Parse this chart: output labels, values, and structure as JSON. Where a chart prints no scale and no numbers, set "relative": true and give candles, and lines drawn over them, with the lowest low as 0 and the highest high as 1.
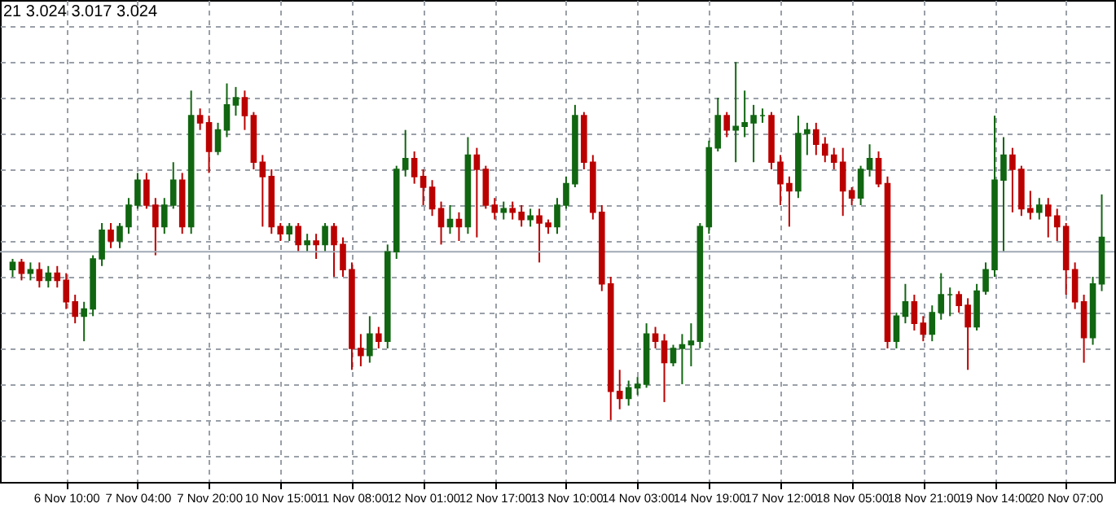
{
  "chart_data": {
    "type": "candlestick",
    "relative": true,
    "grid": true,
    "annotations": [
      "21 3.024 3.017 3.024"
    ],
    "ref_lines": [
      {
        "axis": "y",
        "value": 0.47,
        "color": "#a0aab4"
      }
    ],
    "categories": [
      null,
      null,
      null,
      null,
      null,
      null,
      "6 Nov 10:00",
      null,
      null,
      null,
      null,
      null,
      null,
      null,
      "7 Nov 04:00",
      null,
      null,
      null,
      null,
      null,
      null,
      null,
      "7 Nov 20:00",
      null,
      null,
      null,
      null,
      null,
      null,
      null,
      "10 Nov 15:00",
      null,
      null,
      null,
      null,
      null,
      null,
      null,
      "11 Nov 08:00",
      null,
      null,
      null,
      null,
      null,
      null,
      null,
      "12 Nov 01:00",
      null,
      null,
      null,
      null,
      null,
      null,
      null,
      "12 Nov 17:00",
      null,
      null,
      null,
      null,
      null,
      null,
      null,
      "13 Nov 10:00",
      null,
      null,
      null,
      null,
      null,
      null,
      null,
      "14 Nov 03:00",
      null,
      null,
      null,
      null,
      null,
      null,
      null,
      "14 Nov 19:00",
      null,
      null,
      null,
      null,
      null,
      null,
      null,
      "17 Nov 12:00",
      null,
      null,
      null,
      null,
      null,
      null,
      null,
      "18 Nov 05:00",
      null,
      null,
      null,
      null,
      null,
      null,
      null,
      "18 Nov 21:00",
      null,
      null,
      null,
      null,
      null,
      null,
      null,
      "19 Nov 14:00",
      null,
      null,
      null,
      null,
      null,
      null,
      null,
      "20 Nov 07:00",
      null,
      null,
      null,
      null
    ],
    "ohlc": [
      [
        0.42,
        0.45,
        0.4,
        0.44
      ],
      [
        0.44,
        0.45,
        0.39,
        0.41
      ],
      [
        0.41,
        0.44,
        0.39,
        0.42
      ],
      [
        0.42,
        0.44,
        0.37,
        0.39
      ],
      [
        0.39,
        0.43,
        0.37,
        0.41
      ],
      [
        0.41,
        0.43,
        0.37,
        0.39
      ],
      [
        0.39,
        0.41,
        0.31,
        0.33
      ],
      [
        0.33,
        0.35,
        0.27,
        0.29
      ],
      [
        0.29,
        0.33,
        0.22,
        0.31
      ],
      [
        0.31,
        0.46,
        0.29,
        0.45
      ],
      [
        0.45,
        0.55,
        0.43,
        0.53
      ],
      [
        0.53,
        0.55,
        0.48,
        0.5
      ],
      [
        0.5,
        0.55,
        0.48,
        0.54
      ],
      [
        0.54,
        0.62,
        0.52,
        0.6
      ],
      [
        0.6,
        0.69,
        0.59,
        0.67
      ],
      [
        0.67,
        0.69,
        0.59,
        0.6
      ],
      [
        0.6,
        0.62,
        0.46,
        0.54
      ],
      [
        0.54,
        0.62,
        0.52,
        0.6
      ],
      [
        0.6,
        0.72,
        0.59,
        0.67
      ],
      [
        0.67,
        0.69,
        0.52,
        0.54
      ],
      [
        0.54,
        0.92,
        0.52,
        0.85
      ],
      [
        0.85,
        0.87,
        0.81,
        0.83
      ],
      [
        0.83,
        0.85,
        0.69,
        0.75
      ],
      [
        0.75,
        0.83,
        0.74,
        0.81
      ],
      [
        0.81,
        0.94,
        0.79,
        0.88
      ],
      [
        0.88,
        0.93,
        0.85,
        0.9
      ],
      [
        0.9,
        0.92,
        0.81,
        0.85
      ],
      [
        0.85,
        0.86,
        0.7,
        0.72
      ],
      [
        0.72,
        0.74,
        0.54,
        0.68
      ],
      [
        0.68,
        0.7,
        0.52,
        0.54
      ],
      [
        0.54,
        0.55,
        0.5,
        0.52
      ],
      [
        0.52,
        0.55,
        0.5,
        0.54
      ],
      [
        0.54,
        0.55,
        0.47,
        0.49
      ],
      [
        0.49,
        0.52,
        0.47,
        0.5
      ],
      [
        0.5,
        0.52,
        0.45,
        0.49
      ],
      [
        0.49,
        0.55,
        0.47,
        0.54
      ],
      [
        0.54,
        0.55,
        0.4,
        0.49
      ],
      [
        0.49,
        0.51,
        0.4,
        0.42
      ],
      [
        0.42,
        0.44,
        0.14,
        0.2
      ],
      [
        0.2,
        0.24,
        0.15,
        0.18
      ],
      [
        0.18,
        0.29,
        0.16,
        0.24
      ],
      [
        0.24,
        0.26,
        0.2,
        0.22
      ],
      [
        0.22,
        0.49,
        0.2,
        0.47
      ],
      [
        0.47,
        0.71,
        0.45,
        0.7
      ],
      [
        0.7,
        0.81,
        0.68,
        0.73
      ],
      [
        0.73,
        0.75,
        0.66,
        0.68
      ],
      [
        0.68,
        0.7,
        0.6,
        0.65
      ],
      [
        0.65,
        0.67,
        0.57,
        0.59
      ],
      [
        0.59,
        0.61,
        0.49,
        0.54
      ],
      [
        0.54,
        0.6,
        0.52,
        0.56
      ],
      [
        0.56,
        0.58,
        0.5,
        0.54
      ],
      [
        0.54,
        0.79,
        0.52,
        0.74
      ],
      [
        0.74,
        0.76,
        0.51,
        0.7
      ],
      [
        0.7,
        0.71,
        0.59,
        0.6
      ],
      [
        0.6,
        0.62,
        0.56,
        0.58
      ],
      [
        0.58,
        0.61,
        0.56,
        0.59
      ],
      [
        0.59,
        0.61,
        0.56,
        0.58
      ],
      [
        0.58,
        0.6,
        0.54,
        0.56
      ],
      [
        0.56,
        0.59,
        0.54,
        0.57
      ],
      [
        0.57,
        0.59,
        0.44,
        0.55
      ],
      [
        0.55,
        0.56,
        0.52,
        0.54
      ],
      [
        0.54,
        0.62,
        0.52,
        0.6
      ],
      [
        0.6,
        0.68,
        0.59,
        0.66
      ],
      [
        0.66,
        0.88,
        0.65,
        0.85
      ],
      [
        0.85,
        0.86,
        0.7,
        0.72
      ],
      [
        0.72,
        0.74,
        0.56,
        0.58
      ],
      [
        0.58,
        0.6,
        0.36,
        0.38
      ],
      [
        0.38,
        0.4,
        0,
        0.08
      ],
      [
        0.08,
        0.14,
        0.03,
        0.06
      ],
      [
        0.06,
        0.11,
        0.04,
        0.09
      ],
      [
        0.09,
        0.12,
        0.07,
        0.1
      ],
      [
        0.1,
        0.27,
        0.09,
        0.24
      ],
      [
        0.24,
        0.26,
        0.2,
        0.22
      ],
      [
        0.22,
        0.24,
        0.05,
        0.16
      ],
      [
        0.16,
        0.21,
        0.15,
        0.2
      ],
      [
        0.2,
        0.24,
        0.1,
        0.21
      ],
      [
        0.21,
        0.27,
        0.15,
        0.22
      ],
      [
        0.22,
        0.55,
        0.2,
        0.54
      ],
      [
        0.54,
        0.78,
        0.52,
        0.76
      ],
      [
        0.76,
        0.9,
        0.75,
        0.85
      ],
      [
        0.85,
        0.86,
        0.79,
        0.81
      ],
      [
        0.81,
        1,
        0.72,
        0.82
      ],
      [
        0.82,
        0.92,
        0.79,
        0.83
      ],
      [
        0.83,
        0.88,
        0.72,
        0.85
      ],
      [
        0.85,
        0.87,
        0.83,
        0.85
      ],
      [
        0.85,
        0.86,
        0.7,
        0.72
      ],
      [
        0.72,
        0.74,
        0.6,
        0.66
      ],
      [
        0.66,
        0.68,
        0.54,
        0.64
      ],
      [
        0.64,
        0.85,
        0.62,
        0.8
      ],
      [
        0.8,
        0.83,
        0.74,
        0.81
      ],
      [
        0.81,
        0.83,
        0.74,
        0.77
      ],
      [
        0.77,
        0.79,
        0.72,
        0.74
      ],
      [
        0.74,
        0.76,
        0.7,
        0.72
      ],
      [
        0.72,
        0.76,
        0.57,
        0.64
      ],
      [
        0.64,
        0.65,
        0.6,
        0.62
      ],
      [
        0.62,
        0.71,
        0.6,
        0.7
      ],
      [
        0.7,
        0.77,
        0.68,
        0.73
      ],
      [
        0.73,
        0.75,
        0.65,
        0.66
      ],
      [
        0.66,
        0.68,
        0.2,
        0.22
      ],
      [
        0.22,
        0.3,
        0.2,
        0.29
      ],
      [
        0.29,
        0.38,
        0.27,
        0.33
      ],
      [
        0.33,
        0.35,
        0.25,
        0.27
      ],
      [
        0.27,
        0.29,
        0.22,
        0.24
      ],
      [
        0.24,
        0.32,
        0.22,
        0.3
      ],
      [
        0.3,
        0.41,
        0.28,
        0.35
      ],
      [
        0.35,
        0.37,
        0.29,
        0.35
      ],
      [
        0.35,
        0.36,
        0.3,
        0.32
      ],
      [
        0.32,
        0.34,
        0.14,
        0.26
      ],
      [
        0.26,
        0.38,
        0.25,
        0.36
      ],
      [
        0.36,
        0.44,
        0.35,
        0.42
      ],
      [
        0.42,
        0.85,
        0.4,
        0.67
      ],
      [
        0.67,
        0.79,
        0.47,
        0.74
      ],
      [
        0.74,
        0.76,
        0.58,
        0.7
      ],
      [
        0.7,
        0.71,
        0.57,
        0.59
      ],
      [
        0.59,
        0.64,
        0.56,
        0.58
      ],
      [
        0.58,
        0.62,
        0.56,
        0.6
      ],
      [
        0.6,
        0.62,
        0.51,
        0.57
      ],
      [
        0.57,
        0.59,
        0.5,
        0.54
      ],
      [
        0.54,
        0.55,
        0.35,
        0.42
      ],
      [
        0.42,
        0.44,
        0.31,
        0.33
      ],
      [
        0.33,
        0.35,
        0.16,
        0.23
      ],
      [
        0.23,
        0.4,
        0.21,
        0.38
      ],
      [
        0.38,
        0.63,
        0.36,
        0.51
      ]
    ],
    "colors": [
      "#116611",
      "#bb0000",
      "#116611",
      "#bb0000",
      "#116611",
      "#bb0000",
      "#bb0000",
      "#bb0000",
      "#116611",
      "#116611",
      "#116611",
      "#bb0000",
      "#116611",
      "#116611",
      "#116611",
      "#bb0000",
      "#bb0000",
      "#116611",
      "#116611",
      "#bb0000",
      "#116611",
      "#bb0000",
      "#bb0000",
      "#116611",
      "#116611",
      "#116611",
      "#bb0000",
      "#bb0000",
      "#bb0000",
      "#bb0000",
      "#bb0000",
      "#116611",
      "#bb0000",
      "#116611",
      "#bb0000",
      "#116611",
      "#bb0000",
      "#bb0000",
      "#bb0000",
      "#bb0000",
      "#116611",
      "#bb0000",
      "#116611",
      "#116611",
      "#116611",
      "#bb0000",
      "#bb0000",
      "#bb0000",
      "#bb0000",
      "#116611",
      "#bb0000",
      "#116611",
      "#bb0000",
      "#bb0000",
      "#bb0000",
      "#116611",
      "#bb0000",
      "#bb0000",
      "#116611",
      "#bb0000",
      "#bb0000",
      "#116611",
      "#116611",
      "#116611",
      "#bb0000",
      "#bb0000",
      "#bb0000",
      "#bb0000",
      "#bb0000",
      "#116611",
      "#116611",
      "#116611",
      "#bb0000",
      "#bb0000",
      "#116611",
      "#116611",
      "#116611",
      "#116611",
      "#116611",
      "#116611",
      "#bb0000",
      "#116611",
      "#116611",
      "#116611",
      "#116611",
      "#bb0000",
      "#bb0000",
      "#bb0000",
      "#116611",
      "#116611",
      "#bb0000",
      "#bb0000",
      "#bb0000",
      "#bb0000",
      "#bb0000",
      "#116611",
      "#116611",
      "#bb0000",
      "#bb0000",
      "#116611",
      "#116611",
      "#bb0000",
      "#bb0000",
      "#116611",
      "#116611",
      "#116611",
      "#bb0000",
      "#bb0000",
      "#116611",
      "#116611",
      "#116611",
      "#116611",
      "#bb0000",
      "#bb0000",
      "#bb0000",
      "#116611",
      "#bb0000",
      "#bb0000",
      "#bb0000",
      "#bb0000",
      "#bb0000",
      "#116611",
      "#116611"
    ]
  }
}
